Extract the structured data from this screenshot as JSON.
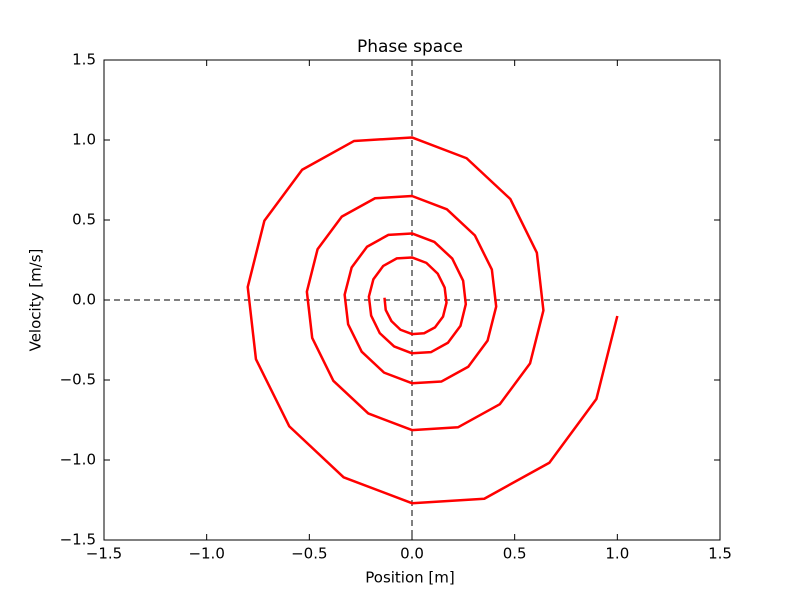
{
  "chart_data": {
    "type": "line",
    "title": "Phase space",
    "xlabel": "Position [m]",
    "ylabel": "Velocity [m/s]",
    "x": [
      1,
      0.898,
      0.669,
      0.352,
      0,
      -0.333,
      -0.598,
      -0.76,
      -0.8,
      -0.719,
      -0.535,
      -0.282,
      0,
      0.266,
      0.479,
      0.608,
      0.64,
      0.575,
      0.428,
      0.225,
      0,
      -0.213,
      -0.383,
      -0.486,
      -0.512,
      -0.46,
      -0.342,
      -0.18,
      0,
      0.17,
      0.306,
      0.389,
      0.41,
      0.368,
      0.274,
      0.144,
      0,
      -0.136,
      -0.245,
      -0.311,
      -0.328,
      -0.294,
      -0.219,
      -0.115,
      0,
      0.109,
      0.196,
      0.249,
      0.262,
      0.236,
      0.175,
      0.092,
      0,
      -0.087,
      -0.157,
      -0.199,
      -0.21,
      -0.188,
      -0.14,
      -0.074,
      0,
      0.07,
      0.125,
      0.159,
      0.168,
      0.151,
      0.112,
      0.059,
      0,
      -0.056,
      -0.1,
      -0.128,
      -0.134
    ],
    "series": [
      {
        "color": "#ff0000",
        "values": [
          -0.1,
          -0.619,
          -1.017,
          -1.242,
          -1.27,
          -1.108,
          -0.789,
          -0.37,
          0.081,
          0.495,
          0.814,
          0.994,
          1.016,
          0.886,
          0.631,
          0.296,
          -0.065,
          -0.396,
          -0.651,
          -0.795,
          -0.813,
          -0.709,
          -0.505,
          -0.237,
          0.052,
          0.317,
          0.521,
          0.636,
          0.65,
          0.567,
          0.404,
          0.19,
          -0.041,
          -0.254,
          -0.417,
          -0.509,
          -0.52,
          -0.454,
          -0.323,
          -0.152,
          0.033,
          0.203,
          0.333,
          0.407,
          0.416,
          0.363,
          0.259,
          0.121,
          -0.026,
          -0.162,
          -0.267,
          -0.326,
          -0.333,
          -0.29,
          -0.207,
          -0.097,
          0.021,
          0.13,
          0.213,
          0.26,
          0.266,
          0.232,
          0.165,
          0.078,
          -0.017,
          -0.104,
          -0.171,
          -0.208,
          -0.213,
          -0.186,
          -0.132,
          -0.062,
          0.014
        ]
      }
    ],
    "xlim": [
      -1.5,
      1.5
    ],
    "ylim": [
      -1.5,
      1.5
    ],
    "xticks": [
      {
        "value": -1.5,
        "label": "−1.5"
      },
      {
        "value": -1.0,
        "label": "−1.0"
      },
      {
        "value": -0.5,
        "label": "−0.5"
      },
      {
        "value": 0,
        "label": "0.0"
      },
      0.5,
      {
        "value": 1.0,
        "label": "1.0"
      },
      1.5
    ],
    "yticks": [
      {
        "value": -1.5,
        "label": "−1.5"
      },
      {
        "value": -1.0,
        "label": "−1.0"
      },
      {
        "value": -0.5,
        "label": "−0.5"
      },
      {
        "value": 0,
        "label": "0.0"
      },
      0.5,
      {
        "value": 1.0,
        "label": "1.0"
      },
      1.5
    ],
    "reference_lines": {
      "x": 0,
      "y": 0
    }
  }
}
